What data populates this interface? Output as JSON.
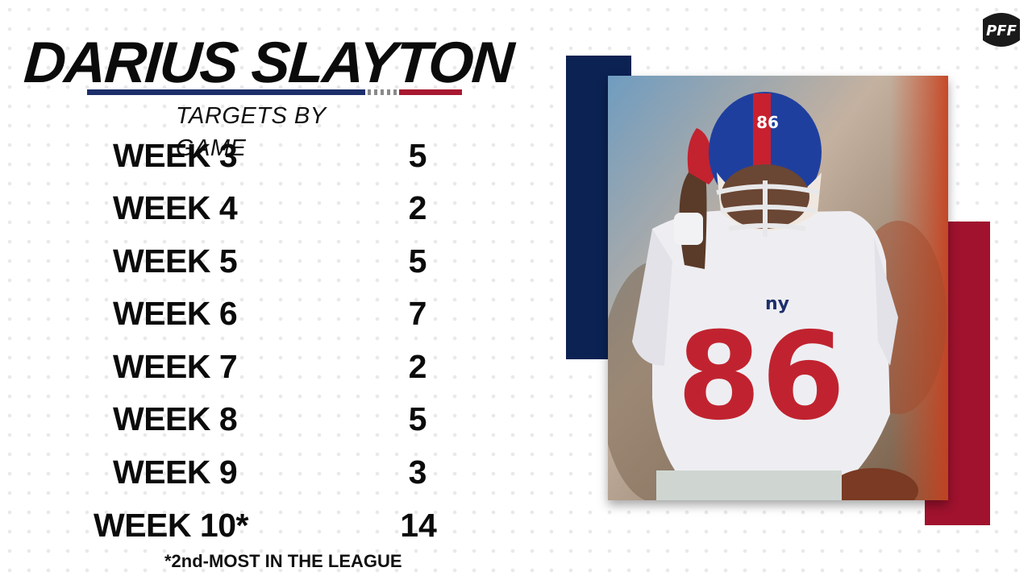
{
  "header": {
    "title": "DARIUS SLAYTON",
    "subtitle": "TARGETS BY GAME"
  },
  "table": {
    "rows": [
      {
        "week": "WEEK 3",
        "targets": "5"
      },
      {
        "week": "WEEK 4",
        "targets": "2"
      },
      {
        "week": "WEEK 5",
        "targets": "5"
      },
      {
        "week": "WEEK 6",
        "targets": "7"
      },
      {
        "week": "WEEK 7",
        "targets": "2"
      },
      {
        "week": "WEEK 8",
        "targets": "5"
      },
      {
        "week": "WEEK 9",
        "targets": "3"
      },
      {
        "week": "WEEK 10*",
        "targets": "14"
      }
    ]
  },
  "footnote": "*2nd-MOST IN THE LEAGUE",
  "photo": {
    "jersey_number": "86",
    "team_mark": "ny"
  },
  "logo": {
    "text": "PFF"
  },
  "colors": {
    "navy": "#0b2253",
    "red": "#a0122e",
    "text": "#0b0b0b"
  }
}
